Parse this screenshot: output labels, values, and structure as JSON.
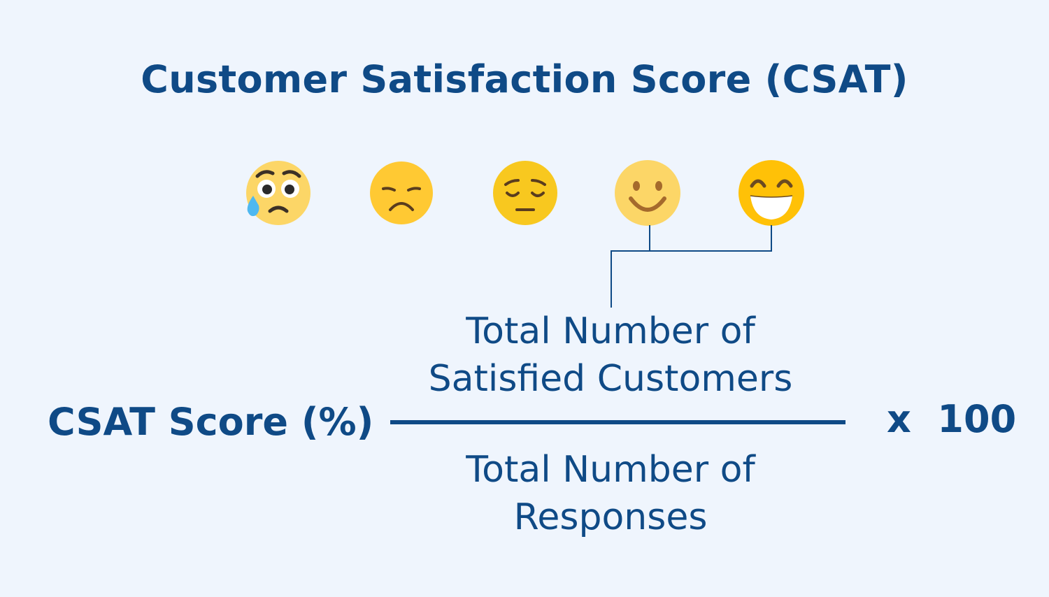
{
  "title": "Customer Satisfaction Score (CSAT)",
  "emojis": [
    {
      "icon": "sad-tear-face-icon"
    },
    {
      "icon": "disappointed-face-icon"
    },
    {
      "icon": "pensive-face-icon"
    },
    {
      "icon": "smiling-face-icon"
    },
    {
      "icon": "grinning-face-icon"
    }
  ],
  "formula": {
    "result_label": "CSAT Score (%)",
    "numerator_line1": "Total Number of",
    "numerator_line2": "Satisfied Customers",
    "denominator_line1": "Total Number of",
    "denominator_line2": "Responses",
    "multiplier": "x  100"
  },
  "colors": {
    "background": "#eff5fd",
    "text": "#0f4a86",
    "emoji_face": "#ffcd3d",
    "tear": "#4fc3f7"
  }
}
